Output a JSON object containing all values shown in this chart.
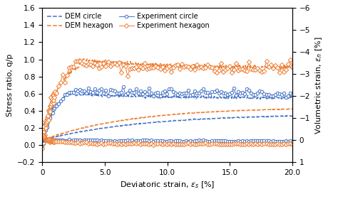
{
  "xlabel": "Deviatoric strain, εₛ [%]",
  "ylabel_left": "Stress ratio, q/p",
  "ylabel_right": "Volumetric strain, εₙ [%]",
  "xlim": [
    0,
    20.0
  ],
  "ylim_left": [
    -0.2,
    1.6
  ],
  "ylim_right": [
    1,
    -6
  ],
  "xticks": [
    0,
    5.0,
    10.0,
    15.0,
    20.0
  ],
  "xticklabels": [
    "0",
    "5.0",
    "10.0",
    "15.0",
    "20.0"
  ],
  "yticks_left": [
    -0.2,
    0.0,
    0.2,
    0.4,
    0.6,
    0.8,
    1.0,
    1.2,
    1.4,
    1.6
  ],
  "yticks_right": [
    1,
    0,
    -1,
    -2,
    -3,
    -4,
    -5,
    -6
  ],
  "color_blue": "#4472C4",
  "color_orange": "#ED7D31",
  "legend_labels": [
    "DEM circle",
    "Experiment circle",
    "DEM hexagon",
    "Experiment hexagon"
  ]
}
